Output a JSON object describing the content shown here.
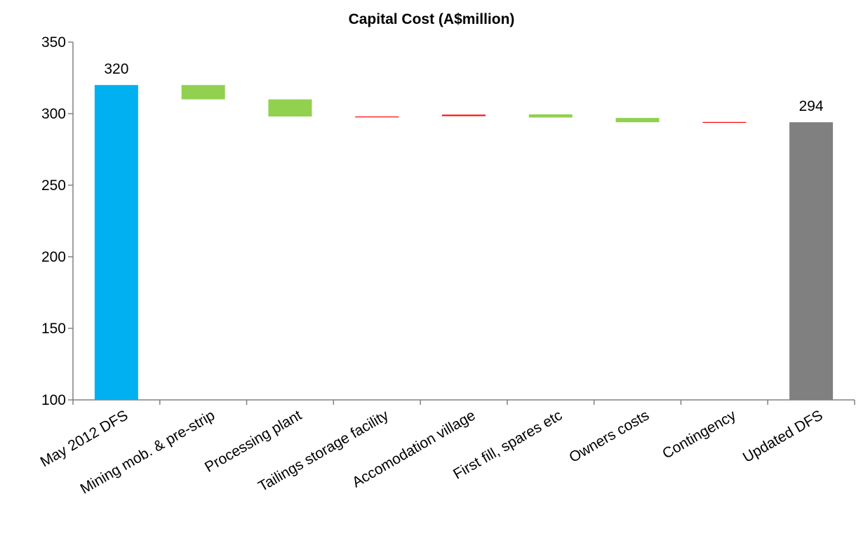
{
  "chart_data": {
    "type": "bar",
    "subtype": "waterfall",
    "title": "Capital Cost (A$million)",
    "xlabel": "",
    "ylabel": "",
    "ylim": [
      100,
      350
    ],
    "yticks": [
      100,
      150,
      200,
      250,
      300,
      350
    ],
    "grid": false,
    "legend": "none",
    "categories": [
      "May 2012 DFS",
      "Mining mob. & pre-strip",
      "Processing plant",
      "Tailings storage facility",
      "Accomodation village",
      "First fill, spares etc",
      "Owners costs",
      "Contingency",
      "Updated DFS"
    ],
    "bars": [
      {
        "kind": "total",
        "start": 100,
        "end": 320,
        "label": "320",
        "color": "#00b0f0"
      },
      {
        "kind": "decrease",
        "start": 320,
        "end": 310,
        "color": "#92d050"
      },
      {
        "kind": "decrease",
        "start": 310,
        "end": 298,
        "color": "#92d050"
      },
      {
        "kind": "increase",
        "start": 297.5,
        "end": 298,
        "color": "#ff0000"
      },
      {
        "kind": "increase",
        "start": 298.3,
        "end": 299.3,
        "color": "#ff0000"
      },
      {
        "kind": "decrease",
        "start": 299.5,
        "end": 297.3,
        "color": "#92d050"
      },
      {
        "kind": "decrease",
        "start": 297,
        "end": 294,
        "color": "#92d050"
      },
      {
        "kind": "increase",
        "start": 293.8,
        "end": 294.2,
        "color": "#ff0000"
      },
      {
        "kind": "total",
        "start": 100,
        "end": 294,
        "label": "294",
        "color": "#808080"
      }
    ]
  }
}
